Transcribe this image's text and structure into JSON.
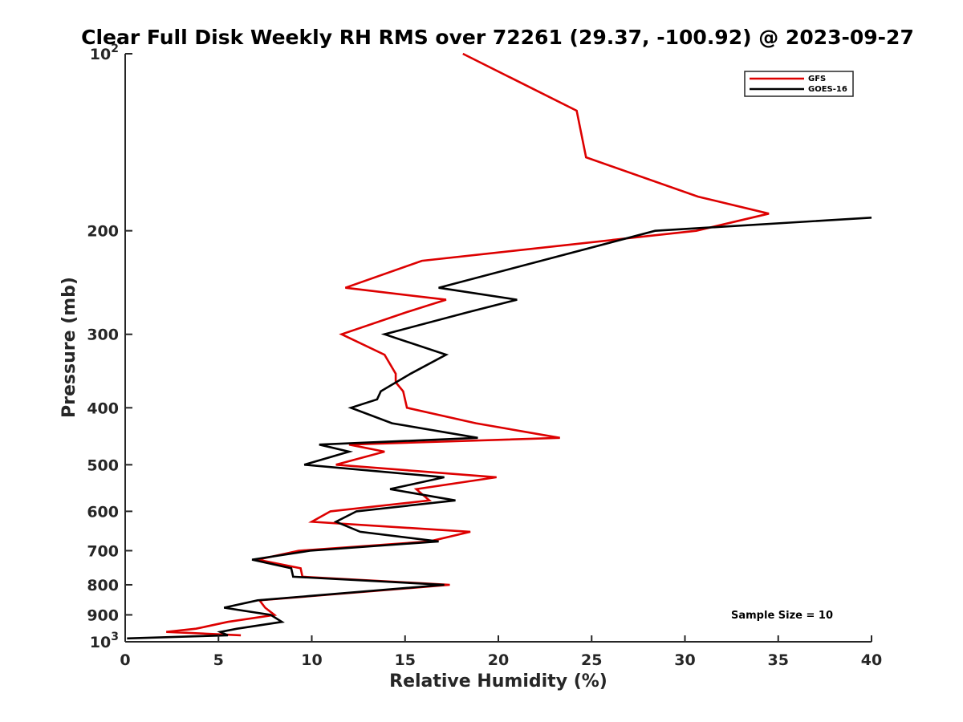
{
  "chart_data": {
    "type": "line",
    "title": "Clear Full Disk Weekly RH RMS over 72261 (29.37, -100.92) @ 2023-09-27",
    "xlabel": "Relative Humidity (%)",
    "ylabel": "Pressure (mb)",
    "xlim": [
      0,
      40
    ],
    "ylim": [
      100,
      1000
    ],
    "y_scale": "log",
    "y_reversed": true,
    "grid": false,
    "legend_position": "top-right",
    "x_ticks": [
      "0",
      "5",
      "10",
      "15",
      "20",
      "25",
      "30",
      "35",
      "40"
    ],
    "x_tick_values": [
      0,
      5,
      10,
      15,
      20,
      25,
      30,
      35,
      40
    ],
    "y_tick_values": [
      100,
      200,
      300,
      400,
      500,
      600,
      700,
      800,
      900,
      1000
    ],
    "y_ticks": [
      {
        "value": 100,
        "base": "10",
        "exp": "2"
      },
      {
        "value": 200,
        "label": "200"
      },
      {
        "value": 300,
        "label": "300"
      },
      {
        "value": 400,
        "label": "400"
      },
      {
        "value": 500,
        "label": "500"
      },
      {
        "value": 600,
        "label": "600"
      },
      {
        "value": 700,
        "label": "700"
      },
      {
        "value": 800,
        "label": "800"
      },
      {
        "value": 900,
        "label": "900"
      },
      {
        "value": 1000,
        "base": "10",
        "exp": "3"
      }
    ],
    "annotation": "Sample Size = 10",
    "series": [
      {
        "name": "GFS",
        "color": "#dd0000",
        "points": [
          [
            18.1,
            100
          ],
          [
            24.2,
            125
          ],
          [
            24.7,
            150
          ],
          [
            30.7,
            175
          ],
          [
            34.5,
            187
          ],
          [
            30.6,
            200
          ],
          [
            15.9,
            225
          ],
          [
            11.8,
            250
          ],
          [
            17.2,
            262
          ],
          [
            15.1,
            275
          ],
          [
            11.6,
            300
          ],
          [
            13.9,
            325
          ],
          [
            14.5,
            350
          ],
          [
            14.5,
            362
          ],
          [
            14.9,
            375
          ],
          [
            15.1,
            400
          ],
          [
            18.8,
            425
          ],
          [
            23.3,
            450
          ],
          [
            12.0,
            462
          ],
          [
            13.9,
            475
          ],
          [
            11.3,
            500
          ],
          [
            19.9,
            525
          ],
          [
            15.6,
            550
          ],
          [
            16.3,
            575
          ],
          [
            11.0,
            600
          ],
          [
            10.0,
            625
          ],
          [
            18.5,
            650
          ],
          [
            16.3,
            675
          ],
          [
            9.3,
            700
          ],
          [
            7.1,
            725
          ],
          [
            9.4,
            750
          ],
          [
            9.5,
            775
          ],
          [
            17.4,
            800
          ],
          [
            7.2,
            850
          ],
          [
            7.5,
            875
          ],
          [
            8.0,
            900
          ],
          [
            5.5,
            925
          ],
          [
            3.8,
            950
          ],
          [
            2.2,
            962
          ],
          [
            6.2,
            975
          ]
        ]
      },
      {
        "name": "GOES-16",
        "color": "#000000",
        "points": [
          [
            40.0,
            190
          ],
          [
            28.4,
            200
          ],
          [
            16.8,
            250
          ],
          [
            21.0,
            262
          ],
          [
            18.4,
            275
          ],
          [
            13.9,
            300
          ],
          [
            17.2,
            325
          ],
          [
            15.3,
            350
          ],
          [
            13.7,
            375
          ],
          [
            13.5,
            387
          ],
          [
            12.1,
            400
          ],
          [
            14.3,
            425
          ],
          [
            18.9,
            450
          ],
          [
            10.4,
            462
          ],
          [
            12.0,
            475
          ],
          [
            9.6,
            500
          ],
          [
            17.1,
            525
          ],
          [
            14.2,
            550
          ],
          [
            17.7,
            575
          ],
          [
            12.4,
            600
          ],
          [
            11.3,
            625
          ],
          [
            12.6,
            650
          ],
          [
            16.8,
            675
          ],
          [
            9.9,
            700
          ],
          [
            6.8,
            725
          ],
          [
            8.9,
            750
          ],
          [
            9.0,
            775
          ],
          [
            17.1,
            800
          ],
          [
            7.1,
            850
          ],
          [
            5.3,
            875
          ],
          [
            7.8,
            900
          ],
          [
            8.4,
            925
          ],
          [
            6.0,
            950
          ],
          [
            5.1,
            962
          ],
          [
            5.5,
            975
          ],
          [
            0.1,
            987
          ]
        ]
      }
    ]
  }
}
